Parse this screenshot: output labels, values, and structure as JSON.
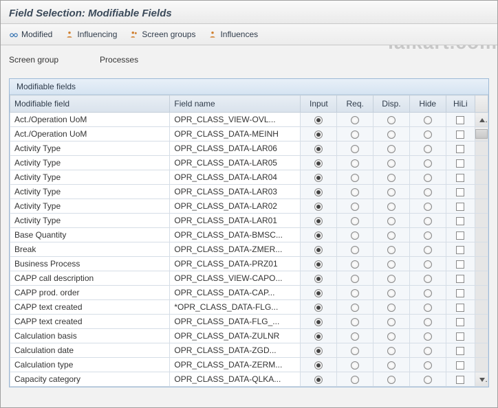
{
  "watermark": "ialkart.com",
  "header": {
    "title": "Field Selection: Modifiable Fields"
  },
  "toolbar": {
    "modified": "Modified",
    "influencing": "Influencing",
    "screen_groups": "Screen groups",
    "influences": "Influences"
  },
  "info": {
    "label": "Screen group",
    "value": "Processes"
  },
  "panel": {
    "title": "Modifiable fields"
  },
  "columns": {
    "field": "Modifiable field",
    "name": "Field name",
    "input": "Input",
    "req": "Req.",
    "disp": "Disp.",
    "hide": "Hide",
    "hili": "HiLi"
  },
  "col_widths": {
    "field": 220,
    "name": 180,
    "radio": 50,
    "hili": 40,
    "scroll": 18
  },
  "rows": [
    {
      "field": "Act./Operation UoM",
      "name": "OPR_CLASS_VIEW-OVL...",
      "sel": "input"
    },
    {
      "field": "Act./Operation UoM",
      "name": "OPR_CLASS_DATA-MEINH",
      "sel": "input"
    },
    {
      "field": "Activity Type",
      "name": "OPR_CLASS_DATA-LAR06",
      "sel": "input"
    },
    {
      "field": "Activity Type",
      "name": "OPR_CLASS_DATA-LAR05",
      "sel": "input"
    },
    {
      "field": "Activity Type",
      "name": "OPR_CLASS_DATA-LAR04",
      "sel": "input"
    },
    {
      "field": "Activity Type",
      "name": "OPR_CLASS_DATA-LAR03",
      "sel": "input"
    },
    {
      "field": "Activity Type",
      "name": "OPR_CLASS_DATA-LAR02",
      "sel": "input"
    },
    {
      "field": "Activity Type",
      "name": "OPR_CLASS_DATA-LAR01",
      "sel": "input"
    },
    {
      "field": "Base Quantity",
      "name": "OPR_CLASS_DATA-BMSC...",
      "sel": "input"
    },
    {
      "field": "Break",
      "name": "OPR_CLASS_DATA-ZMER...",
      "sel": "input"
    },
    {
      "field": "Business Process",
      "name": "OPR_CLASS_DATA-PRZ01",
      "sel": "input"
    },
    {
      "field": "CAPP call description",
      "name": "OPR_CLASS_VIEW-CAPO...",
      "sel": "input"
    },
    {
      "field": "CAPP prod. order",
      "name": "OPR_CLASS_DATA-CAP...",
      "sel": "input"
    },
    {
      "field": "CAPP text created",
      "name": "*OPR_CLASS_DATA-FLG...",
      "sel": "input"
    },
    {
      "field": "CAPP text created",
      "name": "OPR_CLASS_DATA-FLG_...",
      "sel": "input"
    },
    {
      "field": "Calculation basis",
      "name": "OPR_CLASS_DATA-ZULNR",
      "sel": "input"
    },
    {
      "field": "Calculation date",
      "name": "OPR_CLASS_DATA-ZGD...",
      "sel": "input"
    },
    {
      "field": "Calculation type",
      "name": "OPR_CLASS_DATA-ZERM...",
      "sel": "input"
    },
    {
      "field": "Capacity category",
      "name": "OPR_CLASS_DATA-QLKA...",
      "sel": "input"
    }
  ],
  "colors": {
    "header_text": "#3b4a5a",
    "panel_border": "#9db9d6",
    "panel_title_bg_top": "#e8f0f8",
    "panel_title_bg_bot": "#d6e4f2",
    "th_bg_top": "#e8eef4",
    "th_bg_bot": "#d9e2ec",
    "cell_bg": "#f4f7fa"
  }
}
